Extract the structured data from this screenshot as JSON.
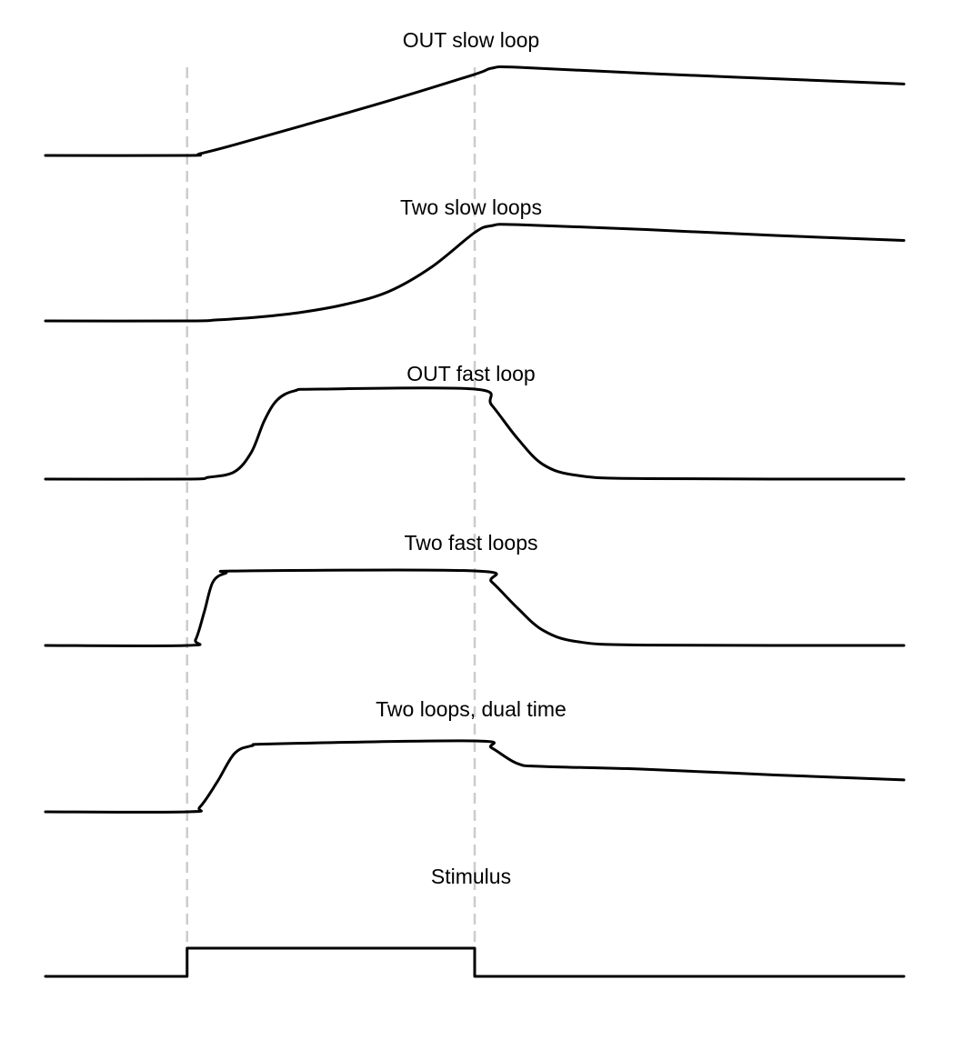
{
  "chart_data": {
    "type": "line",
    "x_range": [
      0,
      100
    ],
    "markers": [
      16.5,
      50
    ],
    "colors": {
      "trace": "#000000",
      "marker": "#cccccc"
    },
    "panels": [
      {
        "title": "OUT slow loop",
        "points": [
          [
            0,
            0
          ],
          [
            16.5,
            0
          ],
          [
            18,
            0.02
          ],
          [
            22,
            0.12
          ],
          [
            30,
            0.34
          ],
          [
            40,
            0.62
          ],
          [
            50,
            0.92
          ],
          [
            52,
            0.99
          ],
          [
            55,
            1.0
          ],
          [
            70,
            0.93
          ],
          [
            85,
            0.87
          ],
          [
            100,
            0.81
          ]
        ]
      },
      {
        "title": "Two slow loops",
        "points": [
          [
            0,
            0
          ],
          [
            16.5,
            0
          ],
          [
            20,
            0.01
          ],
          [
            25,
            0.04
          ],
          [
            30,
            0.09
          ],
          [
            35,
            0.17
          ],
          [
            40,
            0.3
          ],
          [
            45,
            0.55
          ],
          [
            50,
            0.9
          ],
          [
            52,
            0.97
          ],
          [
            55,
            0.98
          ],
          [
            70,
            0.93
          ],
          [
            85,
            0.87
          ],
          [
            100,
            0.82
          ]
        ]
      },
      {
        "title": "OUT fast loop",
        "points": [
          [
            0,
            0
          ],
          [
            16.5,
            0
          ],
          [
            19,
            0.02
          ],
          [
            22,
            0.08
          ],
          [
            24,
            0.3
          ],
          [
            25.5,
            0.65
          ],
          [
            27,
            0.88
          ],
          [
            29,
            0.98
          ],
          [
            32,
            1.0
          ],
          [
            50,
            1.0
          ],
          [
            52,
            0.82
          ],
          [
            55,
            0.45
          ],
          [
            58,
            0.16
          ],
          [
            62,
            0.04
          ],
          [
            70,
            0.005
          ],
          [
            100,
            0
          ]
        ]
      },
      {
        "title": "Two fast loops",
        "points": [
          [
            0,
            0
          ],
          [
            16.5,
            0
          ],
          [
            17.5,
            0.08
          ],
          [
            18.5,
            0.45
          ],
          [
            19.5,
            0.85
          ],
          [
            21,
            0.97
          ],
          [
            23,
            1.0
          ],
          [
            50,
            1.0
          ],
          [
            52,
            0.85
          ],
          [
            55,
            0.5
          ],
          [
            58,
            0.2
          ],
          [
            62,
            0.05
          ],
          [
            70,
            0.005
          ],
          [
            100,
            0
          ]
        ]
      },
      {
        "title": "Two loops, dual time",
        "points": [
          [
            0,
            0
          ],
          [
            16.5,
            0
          ],
          [
            18,
            0.07
          ],
          [
            20,
            0.42
          ],
          [
            22,
            0.82
          ],
          [
            24,
            0.93
          ],
          [
            27,
            0.96
          ],
          [
            50,
            1.0
          ],
          [
            52,
            0.9
          ],
          [
            55,
            0.68
          ],
          [
            58,
            0.64
          ],
          [
            70,
            0.6
          ],
          [
            85,
            0.52
          ],
          [
            100,
            0.45
          ]
        ]
      },
      {
        "title": "Stimulus",
        "points": [
          [
            0,
            0
          ],
          [
            16.5,
            0
          ],
          [
            16.5,
            1
          ],
          [
            50,
            1
          ],
          [
            50,
            0
          ],
          [
            100,
            0
          ]
        ]
      }
    ]
  }
}
